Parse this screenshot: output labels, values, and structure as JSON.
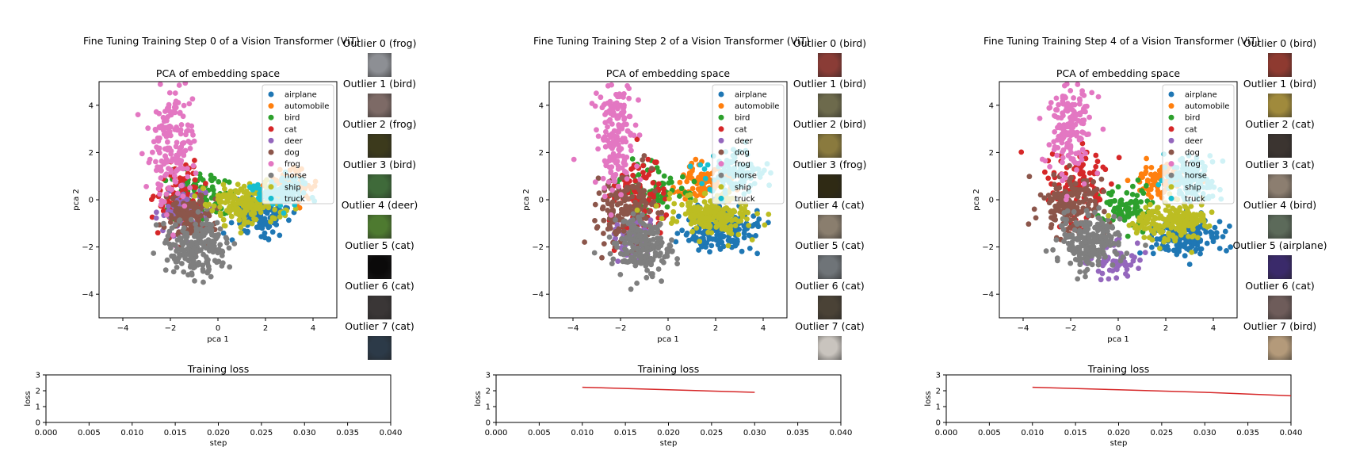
{
  "chart_data": [
    {
      "type": "scatter",
      "panel_title": "Fine Tuning Training Step 0 of a Vision Transformer (ViT)",
      "scatter": {
        "title": "PCA of embedding space",
        "xlabel": "pca 1",
        "ylabel": "pca 2",
        "xlim": [
          -5,
          5
        ],
        "ylim": [
          -5,
          5
        ],
        "xticks": [
          -4,
          -2,
          0,
          2,
          4
        ],
        "yticks": [
          -4,
          -2,
          0,
          2,
          4
        ],
        "legend_position": "upper right",
        "clusters": [
          {
            "label": "airplane",
            "cx": 1.8,
            "cy": -0.6,
            "sx": 0.6,
            "sy": 0.4,
            "n": 150
          },
          {
            "label": "automobile",
            "cx": 3.0,
            "cy": 0.6,
            "sx": 0.5,
            "sy": 0.3,
            "n": 80
          },
          {
            "label": "bird",
            "cx": -0.8,
            "cy": 0.2,
            "sx": 0.8,
            "sy": 0.5,
            "n": 90
          },
          {
            "label": "cat",
            "cx": -1.6,
            "cy": 0.2,
            "sx": 0.5,
            "sy": 0.7,
            "n": 90
          },
          {
            "label": "deer",
            "cx": -1.5,
            "cy": -0.5,
            "sx": 0.5,
            "sy": 0.5,
            "n": 60
          },
          {
            "label": "dog",
            "cx": -1.2,
            "cy": -0.8,
            "sx": 0.5,
            "sy": 0.5,
            "n": 130
          },
          {
            "label": "frog",
            "cx": -1.9,
            "cy": 2.4,
            "sx": 0.5,
            "sy": 1.3,
            "n": 170
          },
          {
            "label": "horse",
            "cx": -0.8,
            "cy": -2.0,
            "sx": 0.6,
            "sy": 0.6,
            "n": 200
          },
          {
            "label": "ship",
            "cx": 1.2,
            "cy": -0.2,
            "sx": 0.8,
            "sy": 0.4,
            "n": 180
          },
          {
            "label": "truck",
            "cx": 2.6,
            "cy": 0.4,
            "sx": 0.6,
            "sy": 0.3,
            "n": 120
          }
        ]
      },
      "outliers": [
        {
          "label": "Outlier 0 (frog)",
          "thumb": "#8d8f94"
        },
        {
          "label": "Outlier 1 (bird)",
          "thumb": "#7d6a66"
        },
        {
          "label": "Outlier 2 (frog)",
          "thumb": "#3c3a1c"
        },
        {
          "label": "Outlier 3 (bird)",
          "thumb": "#3f6a3a"
        },
        {
          "label": "Outlier 4 (deer)",
          "thumb": "#4e7a30"
        },
        {
          "label": "Outlier 5 (cat)",
          "thumb": "#0b0a0a"
        },
        {
          "label": "Outlier 6 (cat)",
          "thumb": "#3a3636"
        },
        {
          "label": "Outlier 7 (cat)",
          "thumb": "#2c3a48"
        }
      ],
      "loss": {
        "title": "Training loss",
        "xlabel": "step",
        "ylabel": "loss",
        "xlim": [
          0,
          0.04
        ],
        "ylim": [
          0,
          3
        ],
        "xticks": [
          "0.000",
          "0.005",
          "0.010",
          "0.015",
          "0.020",
          "0.025",
          "0.030",
          "0.035",
          "0.040"
        ],
        "yticks": [
          0,
          1,
          2,
          3
        ],
        "x": [],
        "y": []
      }
    },
    {
      "type": "scatter",
      "panel_title": "Fine Tuning Training Step 2 of a Vision Transformer (ViT)",
      "scatter": {
        "title": "PCA of embedding space",
        "xlabel": "pca 1",
        "ylabel": "pca 2",
        "xlim": [
          -5,
          5
        ],
        "ylim": [
          -5,
          5
        ],
        "xticks": [
          -4,
          -2,
          0,
          2,
          4
        ],
        "yticks": [
          -4,
          -2,
          0,
          2,
          4
        ],
        "legend_position": "upper right",
        "clusters": [
          {
            "label": "airplane",
            "cx": 2.3,
            "cy": -1.3,
            "sx": 0.8,
            "sy": 0.5,
            "n": 170
          },
          {
            "label": "automobile",
            "cx": 1.6,
            "cy": 0.8,
            "sx": 0.6,
            "sy": 0.4,
            "n": 90
          },
          {
            "label": "bird",
            "cx": -0.6,
            "cy": 0.4,
            "sx": 0.7,
            "sy": 0.6,
            "n": 80
          },
          {
            "label": "cat",
            "cx": -1.3,
            "cy": 0.0,
            "sx": 0.6,
            "sy": 0.8,
            "n": 100
          },
          {
            "label": "deer",
            "cx": -1.5,
            "cy": -1.6,
            "sx": 0.5,
            "sy": 0.5,
            "n": 60
          },
          {
            "label": "dog",
            "cx": -1.8,
            "cy": -0.4,
            "sx": 0.6,
            "sy": 0.7,
            "n": 160
          },
          {
            "label": "frog",
            "cx": -2.2,
            "cy": 2.8,
            "sx": 0.4,
            "sy": 1.2,
            "n": 170
          },
          {
            "label": "horse",
            "cx": -1.1,
            "cy": -2.1,
            "sx": 0.6,
            "sy": 0.6,
            "n": 200
          },
          {
            "label": "ship",
            "cx": 1.9,
            "cy": -0.6,
            "sx": 0.8,
            "sy": 0.4,
            "n": 200
          },
          {
            "label": "truck",
            "cx": 2.8,
            "cy": 1.2,
            "sx": 0.6,
            "sy": 0.5,
            "n": 110
          }
        ]
      },
      "outliers": [
        {
          "label": "Outlier 0 (bird)",
          "thumb": "#8a3c36"
        },
        {
          "label": "Outlier 1 (bird)",
          "thumb": "#6d6a4c"
        },
        {
          "label": "Outlier 2 (bird)",
          "thumb": "#8a7a3e"
        },
        {
          "label": "Outlier 3 (frog)",
          "thumb": "#2f2a14"
        },
        {
          "label": "Outlier 4 (cat)",
          "thumb": "#8a7e6e"
        },
        {
          "label": "Outlier 5 (cat)",
          "thumb": "#6f7478"
        },
        {
          "label": "Outlier 6 (cat)",
          "thumb": "#4a4236"
        },
        {
          "label": "Outlier 7 (cat)",
          "thumb": "#c9c4be"
        }
      ],
      "loss": {
        "title": "Training loss",
        "xlabel": "step",
        "ylabel": "loss",
        "xlim": [
          0,
          0.04
        ],
        "ylim": [
          0,
          3
        ],
        "xticks": [
          "0.000",
          "0.005",
          "0.010",
          "0.015",
          "0.020",
          "0.025",
          "0.030",
          "0.035",
          "0.040"
        ],
        "yticks": [
          0,
          1,
          2,
          3
        ],
        "x": [
          0.01,
          0.02,
          0.03
        ],
        "y": [
          2.22,
          2.06,
          1.9
        ]
      }
    },
    {
      "type": "scatter",
      "panel_title": "Fine Tuning Training Step 4 of a Vision Transformer (ViT)",
      "scatter": {
        "title": "PCA of embedding space",
        "xlabel": "pca 1",
        "ylabel": "pca 2",
        "xlim": [
          -5,
          5
        ],
        "ylim": [
          -5,
          5
        ],
        "xticks": [
          -4,
          -2,
          0,
          2,
          4
        ],
        "yticks": [
          -4,
          -2,
          0,
          2,
          4
        ],
        "legend_position": "upper right",
        "clusters": [
          {
            "label": "airplane",
            "cx": 2.7,
            "cy": -1.6,
            "sx": 0.7,
            "sy": 0.4,
            "n": 170
          },
          {
            "label": "automobile",
            "cx": 1.8,
            "cy": 0.9,
            "sx": 0.6,
            "sy": 0.4,
            "n": 90
          },
          {
            "label": "bird",
            "cx": 0.4,
            "cy": -0.4,
            "sx": 0.6,
            "sy": 0.5,
            "n": 90
          },
          {
            "label": "cat",
            "cx": -1.8,
            "cy": 0.6,
            "sx": 0.7,
            "sy": 0.8,
            "n": 110
          },
          {
            "label": "deer",
            "cx": -0.1,
            "cy": -2.5,
            "sx": 0.6,
            "sy": 0.4,
            "n": 60
          },
          {
            "label": "dog",
            "cx": -2.0,
            "cy": -0.2,
            "sx": 0.7,
            "sy": 0.6,
            "n": 160
          },
          {
            "label": "frog",
            "cx": -2.0,
            "cy": 3.2,
            "sx": 0.5,
            "sy": 1.1,
            "n": 170
          },
          {
            "label": "horse",
            "cx": -1.2,
            "cy": -1.8,
            "sx": 0.7,
            "sy": 0.6,
            "n": 210
          },
          {
            "label": "ship",
            "cx": 2.3,
            "cy": -0.9,
            "sx": 0.8,
            "sy": 0.4,
            "n": 200
          },
          {
            "label": "truck",
            "cx": 3.0,
            "cy": 0.8,
            "sx": 0.6,
            "sy": 0.5,
            "n": 120
          }
        ]
      },
      "outliers": [
        {
          "label": "Outlier 0 (bird)",
          "thumb": "#8e3a30"
        },
        {
          "label": "Outlier 1 (bird)",
          "thumb": "#a08a3c"
        },
        {
          "label": "Outlier 2 (cat)",
          "thumb": "#3b3430"
        },
        {
          "label": "Outlier 3 (cat)",
          "thumb": "#8c7e70"
        },
        {
          "label": "Outlier 4 (bird)",
          "thumb": "#5c6a5a"
        },
        {
          "label": "Outlier 5 (airplane)",
          "thumb": "#3a2a6a"
        },
        {
          "label": "Outlier 6 (cat)",
          "thumb": "#6e5c5a"
        },
        {
          "label": "Outlier 7 (bird)",
          "thumb": "#b49a7a"
        }
      ],
      "loss": {
        "title": "Training loss",
        "xlabel": "step",
        "ylabel": "loss",
        "xlim": [
          0,
          0.04
        ],
        "ylim": [
          0,
          3
        ],
        "xticks": [
          "0.000",
          "0.005",
          "0.010",
          "0.015",
          "0.020",
          "0.025",
          "0.030",
          "0.035",
          "0.040"
        ],
        "yticks": [
          0,
          1,
          2,
          3
        ],
        "x": [
          0.01,
          0.02,
          0.03,
          0.04
        ],
        "y": [
          2.22,
          2.06,
          1.9,
          1.68
        ]
      }
    }
  ],
  "legend_labels": [
    "airplane",
    "automobile",
    "bird",
    "cat",
    "deer",
    "dog",
    "frog",
    "horse",
    "ship",
    "truck"
  ],
  "colors": {
    "airplane": "#1f77b4",
    "automobile": "#ff7f0e",
    "bird": "#2ca02c",
    "cat": "#d62728",
    "deer": "#9467bd",
    "dog": "#8c564b",
    "frog": "#e377c2",
    "horse": "#7f7f7f",
    "ship": "#bcbd22",
    "truck": "#17becf",
    "loss_line": "#d62728"
  }
}
